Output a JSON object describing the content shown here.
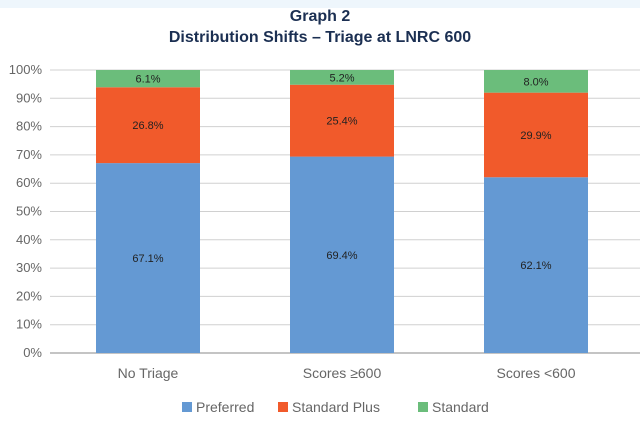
{
  "chart_data": {
    "type": "bar",
    "stacked": true,
    "title": "Graph 2",
    "subtitle": "Distribution Shifts – Triage at LNRC 600",
    "categories": [
      "No Triage",
      "Scores ≥600",
      "Scores <600"
    ],
    "series": [
      {
        "name": "Preferred",
        "color": "#6499d3",
        "values": [
          67.1,
          69.4,
          62.1
        ],
        "labels": [
          "67.1%",
          "69.4%",
          "62.1%"
        ]
      },
      {
        "name": "Standard Plus",
        "color": "#f15a2b",
        "values": [
          26.8,
          25.4,
          29.9
        ],
        "labels": [
          "26.8%",
          "25.4%",
          "29.9%"
        ]
      },
      {
        "name": "Standard",
        "color": "#6bbd7b",
        "values": [
          6.1,
          5.2,
          8.0
        ],
        "labels": [
          "6.1%",
          "5.2%",
          "8.0%"
        ]
      }
    ],
    "ylim": [
      0,
      100
    ],
    "yticks": [
      "0%",
      "10%",
      "20%",
      "30%",
      "40%",
      "50%",
      "60%",
      "70%",
      "80%",
      "90%",
      "100%"
    ],
    "grid": true,
    "legend": "bottom"
  }
}
